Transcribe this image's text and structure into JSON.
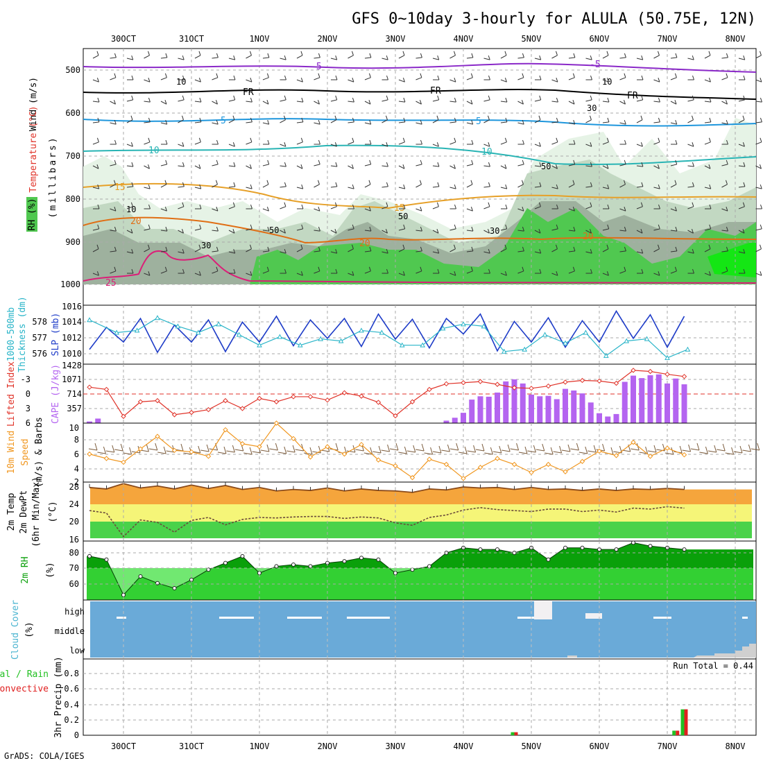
{
  "header": {
    "title": "GFS 0~10day 3-hourly for ALULA (50.75E, 12N)",
    "credit": "GrADS: COLA/IGES"
  },
  "time_axis": {
    "labels": [
      "30OCT",
      "31OCT",
      "1NOV",
      "2NOV",
      "3NOV",
      "4NOV",
      "5NOV",
      "6NOV",
      "7NOV",
      "8NOV"
    ],
    "day_start": -0.5,
    "day_end": 9.3
  },
  "colors": {
    "rh_light": "#e6f3e6",
    "rh_mid": "#c2d8c2",
    "rh_grey": "#9eb19e",
    "rh_green": "#50c850",
    "rh_bright": "#14e614",
    "slp": "#1e3cc8",
    "thickness": "#28b4c8",
    "cape_bar": "#b464f0",
    "lifted_index": "#e03228",
    "wind_speed": "#f0961e",
    "wind_barb": "#7a5a3a",
    "t2m_fill": "#f5a53c",
    "td2m_fill": "#f5f578",
    "green_fill": "#4ad24a",
    "rh2m_dark": "#0aa00a",
    "rh2m_light": "#42e042",
    "cloud_bg": "#6aaad8",
    "precip_total": "#22c022",
    "precip_conv": "#e02020"
  },
  "panels": {
    "upper_air": {
      "ylabels": [
        "Wind (m/s)",
        "Temperature (°C)",
        "RH (%)",
        "(millibars)"
      ],
      "yticks": [
        "500",
        "600",
        "700",
        "800",
        "900",
        "1000"
      ],
      "contour_labels": [
        "-5",
        "FR",
        "5",
        "10",
        "15",
        "20",
        "25",
        "10",
        "30",
        "50"
      ]
    },
    "slp": {
      "ylabels": [
        "1000-500mb",
        "Thickness (dm)",
        "SLP (mb)"
      ],
      "left_ticks": [
        "578",
        "577",
        "576"
      ],
      "right_ticks": [
        "1016",
        "1014",
        "1012",
        "1010"
      ]
    },
    "cape": {
      "ylabels": [
        "Lifted Index",
        "CAPE (J/kg)"
      ],
      "left_ticks": [
        "-3",
        "0",
        "3",
        "6"
      ],
      "right_ticks": [
        "1428",
        "1071",
        "714",
        "357"
      ]
    },
    "wind10m": {
      "ylabels": [
        "10m Wind",
        "Speed",
        "(m/s) & Barbs"
      ],
      "ticks": [
        "10",
        "8",
        "6",
        "4",
        "2"
      ]
    },
    "temp2m": {
      "ylabels": [
        "2m Temp",
        "2m DewPt",
        "(6hr Min/Max)",
        "(°C)"
      ],
      "ticks": [
        "28",
        "24",
        "20",
        "16"
      ]
    },
    "rh2m": {
      "ylabels": [
        "2m RH",
        "(%)"
      ],
      "ticks": [
        "80",
        "70",
        "60"
      ]
    },
    "cloud": {
      "ylabels": [
        "Cloud Cover",
        "(%)"
      ],
      "levels": [
        "high",
        "middle",
        "low"
      ]
    },
    "precip": {
      "ylabels": [
        "Total / Rain",
        "Convective",
        "3hr Precip (mm)"
      ],
      "ticks": [
        "0.8",
        "0.6",
        "0.4",
        "0.2",
        "0"
      ],
      "run_total": "Run Total = 0.44"
    }
  },
  "chart_data": [
    {
      "type": "line",
      "title": "SLP (mb)",
      "x": [
        -0.5,
        -0.25,
        0,
        0.25,
        0.5,
        0.75,
        1,
        1.25,
        1.5,
        1.75,
        2,
        2.25,
        2.5,
        2.75,
        3,
        3.25,
        3.5,
        3.75,
        4,
        4.25,
        4.5,
        4.75,
        5,
        5.25,
        5.5,
        5.75,
        6,
        6.25,
        6.5,
        6.75,
        7,
        7.25,
        7.5,
        7.75,
        8,
        8.25
      ],
      "values": [
        1010,
        1013,
        1011,
        1014.2,
        1009.6,
        1013.3,
        1011,
        1014,
        1009.7,
        1013.7,
        1011,
        1014.5,
        1010.5,
        1014,
        1011.5,
        1014.2,
        1010.4,
        1014.8,
        1011.4,
        1014.1,
        1010.2,
        1014.2,
        1012.1,
        1014.8,
        1009.8,
        1013.8,
        1011,
        1014.3,
        1010.3,
        1013.9,
        1011,
        1015.2,
        1011.5,
        1014.7,
        1010.3,
        1014.5
      ],
      "ylim": [
        1008,
        1016
      ]
    },
    {
      "type": "line",
      "title": "1000-500mb Thickness (dm)",
      "x": [
        -0.5,
        -0.1,
        0.2,
        0.5,
        0.8,
        1.1,
        1.4,
        1.7,
        2,
        2.3,
        2.6,
        2.9,
        3.2,
        3.5,
        3.8,
        4.1,
        4.4,
        4.7,
        5,
        5.3,
        5.6,
        5.9,
        6.2,
        6.5,
        6.8,
        7.1,
        7.4,
        7.7,
        8,
        8.3
      ],
      "values": [
        577.8,
        577.2,
        577.3,
        577.9,
        577.5,
        577.2,
        577.6,
        577.1,
        576.6,
        577,
        576.6,
        576.9,
        576.8,
        577.3,
        577.2,
        576.6,
        576.6,
        577.4,
        577.6,
        577.5,
        576.3,
        576.4,
        577.1,
        576.7,
        577.2,
        576.1,
        576.8,
        576.9,
        576,
        576.4
      ],
      "ylim": [
        575.7,
        578.5
      ]
    },
    {
      "type": "bar",
      "title": "CAPE (J/kg)",
      "x": [
        -0.5,
        -0.375,
        4.75,
        4.875,
        5,
        5.125,
        5.25,
        5.375,
        5.5,
        5.625,
        5.75,
        5.875,
        6,
        6.125,
        6.25,
        6.375,
        6.5,
        6.625,
        6.75,
        6.875,
        7,
        7.125,
        7.25,
        7.375,
        7.5,
        7.625,
        7.75,
        7.875,
        8,
        8.125,
        8.25
      ],
      "values": [
        40,
        110,
        60,
        130,
        250,
        570,
        650,
        640,
        740,
        1010,
        1060,
        960,
        690,
        650,
        660,
        580,
        830,
        790,
        720,
        500,
        240,
        160,
        220,
        1000,
        1150,
        1090,
        1160,
        1180,
        960,
        1080,
        940
      ],
      "ylim": [
        0,
        1428
      ]
    },
    {
      "type": "line",
      "title": "Lifted Index",
      "x": [
        -0.5,
        -0.25,
        0,
        0.25,
        0.5,
        0.75,
        1,
        1.25,
        1.5,
        1.75,
        2,
        2.25,
        2.5,
        2.75,
        3,
        3.25,
        3.5,
        3.75,
        4,
        4.25,
        4.5,
        4.75,
        5,
        5.25,
        5.5,
        5.75,
        6,
        6.25,
        6.5,
        6.75,
        7,
        7.25,
        7.5,
        7.75,
        8,
        8.25
      ],
      "values": [
        -0.4,
        0,
        4.8,
        2.2,
        2,
        4.5,
        4.1,
        3.6,
        2,
        3.4,
        1.6,
        2.2,
        1.3,
        1.3,
        1.9,
        0.6,
        1.2,
        2.3,
        4.7,
        2.2,
        0,
        -1,
        -1.2,
        -1.4,
        -0.9,
        -0.3,
        -0.2,
        -0.6,
        -1.3,
        -1.6,
        -1.5,
        -1.1,
        -3.4,
        -3.2,
        -2.7,
        -2.3
      ],
      "ylim": [
        -4.5,
        6
      ]
    },
    {
      "type": "line",
      "title": "10m Wind Speed (m/s)",
      "x": [
        -0.5,
        -0.25,
        0,
        0.25,
        0.5,
        0.75,
        1,
        1.25,
        1.5,
        1.75,
        2,
        2.25,
        2.5,
        2.75,
        3,
        3.25,
        3.5,
        3.75,
        4,
        4.25,
        4.5,
        4.75,
        5,
        5.25,
        5.5,
        5.75,
        6,
        6.25,
        6.5,
        6.75,
        7,
        7.25,
        7.5,
        7.75,
        8,
        8.25
      ],
      "values": [
        5.8,
        5.2,
        4.7,
        6.5,
        8.2,
        6.3,
        6.1,
        5.5,
        9.1,
        7.2,
        6.8,
        10,
        7.9,
        5.4,
        6.8,
        5.8,
        7.1,
        5,
        4.2,
        2.6,
        5.1,
        4.4,
        2.5,
        4,
        5.2,
        4.4,
        3.3,
        4.4,
        3.4,
        4.8,
        6.2,
        5.6,
        7.4,
        5.5,
        6.6,
        5.7
      ],
      "ylim": [
        2,
        10
      ]
    },
    {
      "type": "area",
      "title": "2m Temp",
      "x": [
        -0.5,
        -0.25,
        0,
        0.25,
        0.5,
        0.75,
        1,
        1.25,
        1.5,
        1.75,
        2,
        2.25,
        2.5,
        2.75,
        3,
        3.25,
        3.5,
        3.75,
        4,
        4.25,
        4.5,
        4.75,
        5,
        5.25,
        5.5,
        5.75,
        6,
        6.25,
        6.5,
        6.75,
        7,
        7.25,
        7.5,
        7.75,
        8,
        8.25
      ],
      "values": [
        26.9,
        26.6,
        27.7,
        26.8,
        27.2,
        26.6,
        27.4,
        26.7,
        27.3,
        26.5,
        26.9,
        26.2,
        26.5,
        26.3,
        26.8,
        26.2,
        26.6,
        26.3,
        26.2,
        25.9,
        26.6,
        26.4,
        27,
        26.8,
        26.9,
        26.5,
        26.9,
        26.5,
        26.6,
        26.3,
        26.6,
        26.3,
        26.6,
        26.5,
        26.7,
        26.5
      ],
      "ylim": [
        16,
        28
      ]
    },
    {
      "type": "line",
      "title": "2m DewPt",
      "x": [
        -0.5,
        -0.25,
        0,
        0.25,
        0.5,
        0.75,
        1,
        1.25,
        1.5,
        1.75,
        2,
        2.25,
        2.5,
        2.75,
        3,
        3.25,
        3.5,
        3.75,
        4,
        4.25,
        4.5,
        4.75,
        5,
        5.25,
        5.5,
        5.75,
        6,
        6.25,
        6.5,
        6.75,
        7,
        7.25,
        7.5,
        7.75,
        8,
        8.25
      ],
      "values": [
        22.2,
        21.7,
        16.9,
        20.3,
        19.8,
        17.8,
        20.2,
        20.8,
        19.3,
        20.4,
        20.8,
        20.7,
        20.9,
        21,
        21,
        20.6,
        20.9,
        20.7,
        19.7,
        19.2,
        20.8,
        21.3,
        22.3,
        22.8,
        22.4,
        22.2,
        22,
        22.5,
        22.5,
        22,
        22.3,
        21.9,
        22.7,
        22.5,
        23,
        22.7
      ],
      "ylim": [
        16,
        28
      ]
    },
    {
      "type": "area",
      "title": "2m RH (%)",
      "x": [
        -0.5,
        -0.25,
        0,
        0.25,
        0.5,
        0.75,
        1,
        1.25,
        1.5,
        1.75,
        2,
        2.25,
        2.5,
        2.75,
        3,
        3.25,
        3.5,
        3.75,
        4,
        4.25,
        4.5,
        4.75,
        5,
        5.25,
        5.5,
        5.75,
        6,
        6.25,
        6.5,
        6.75,
        7,
        7.25,
        7.5,
        7.75,
        8,
        8.25
      ],
      "values": [
        76,
        74,
        53,
        64,
        60,
        57,
        62,
        68,
        72,
        76,
        66,
        70,
        71,
        70,
        72,
        73,
        75,
        74,
        66,
        68,
        70,
        78,
        81,
        80,
        80,
        78,
        81,
        74,
        81,
        81,
        80,
        80,
        84,
        82,
        81,
        80
      ],
      "ylim": [
        50,
        85
      ]
    },
    {
      "type": "bar",
      "title": "3hr Precip (mm)",
      "x": [
        5.75,
        8.125,
        8.25
      ],
      "values": [
        0.04,
        0.06,
        0.34
      ],
      "ylim": [
        0,
        1
      ]
    }
  ]
}
